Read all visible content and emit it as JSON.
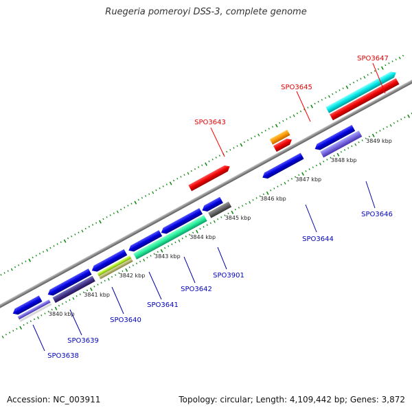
{
  "title": "Ruegeria pomeroyi DSS-3, complete genome",
  "footer": {
    "accession": "Accession: NC_003911",
    "summary": "Topology: circular; Length: 4,109,442 bp; Genes: 3,872"
  },
  "colors": {
    "backbone": "#8c8c8c",
    "tick": "#118811",
    "forward_label": "#dd0000",
    "reverse_label": "#0000bb"
  },
  "kbp_labels": [
    "3840 kbp",
    "3841 kbp",
    "3842 kbp",
    "3843 kbp",
    "3844 kbp",
    "3845 kbp",
    "3846 kbp",
    "3847 kbp",
    "3848 kbp",
    "3849 kbp"
  ],
  "genes": [
    {
      "name": "SPO3638",
      "strand": "reverse",
      "color": "#0000bb"
    },
    {
      "name": "SPO3639",
      "strand": "reverse",
      "color": "#0000bb"
    },
    {
      "name": "SPO3640",
      "strand": "reverse",
      "color": "#0000bb"
    },
    {
      "name": "SPO3641",
      "strand": "reverse",
      "color": "#0000bb"
    },
    {
      "name": "SPO3642",
      "strand": "reverse",
      "color": "#0000bb"
    },
    {
      "name": "SPO3901",
      "strand": "reverse",
      "color": "#0000bb"
    },
    {
      "name": "SPO3643",
      "strand": "forward",
      "color": "#dd0000"
    },
    {
      "name": "SPO3644",
      "strand": "reverse",
      "color": "#0000bb"
    },
    {
      "name": "SPO3645",
      "strand": "forward",
      "color": "#dd0000"
    },
    {
      "name": "SPO3646",
      "strand": "reverse",
      "color": "#0000bb"
    },
    {
      "name": "SPO3647",
      "strand": "forward",
      "color": "#dd0000"
    }
  ]
}
